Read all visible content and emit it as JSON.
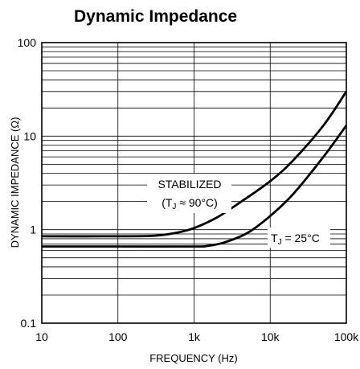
{
  "chart_data": {
    "type": "line",
    "title": "Dynamic Impedance",
    "xlabel": "FREQUENCY (Hz)",
    "ylabel": "DYNAMIC IMPEDANCE (Ω)",
    "x_scale": "log",
    "y_scale": "log",
    "xlim": [
      10,
      100000
    ],
    "ylim": [
      0.1,
      100
    ],
    "grid": true,
    "x_ticks": [
      {
        "value": 10,
        "label": "10"
      },
      {
        "value": 100,
        "label": "100"
      },
      {
        "value": 1000,
        "label": "1k"
      },
      {
        "value": 10000,
        "label": "10k"
      },
      {
        "value": 100000,
        "label": "100k"
      }
    ],
    "y_ticks": [
      {
        "value": 0.1,
        "label": "0.1"
      },
      {
        "value": 1,
        "label": "1"
      },
      {
        "value": 10,
        "label": "10"
      },
      {
        "value": 100,
        "label": "100"
      }
    ],
    "series": [
      {
        "x": [
          10,
          100,
          300,
          600,
          1000,
          2000,
          4000,
          10000,
          20000,
          50000,
          100000
        ],
        "y": [
          0.85,
          0.85,
          0.86,
          0.93,
          1.04,
          1.35,
          1.95,
          3.3,
          5.5,
          13,
          30
        ]
      },
      {
        "x": [
          10,
          100,
          1000,
          1500,
          2500,
          5000,
          10000,
          20000,
          50000,
          100000
        ],
        "y": [
          0.66,
          0.66,
          0.66,
          0.67,
          0.73,
          0.92,
          1.4,
          2.4,
          6,
          13
        ]
      }
    ],
    "annotations": [
      {
        "line1": "STABILIZED",
        "line2_pre": "(T",
        "line2_sub": "J",
        "line2_post": " ≈ 90°C)"
      },
      {
        "pre": "T",
        "sub": "J",
        "post": " = 25°C"
      }
    ]
  }
}
